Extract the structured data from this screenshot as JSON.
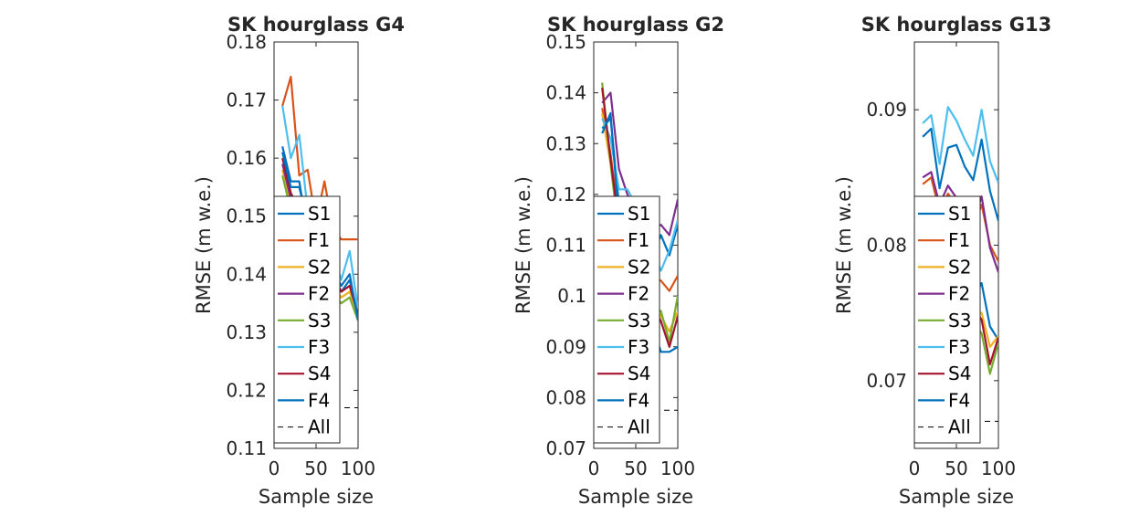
{
  "chart_data": [
    {
      "type": "line",
      "title": "SK hourglass G4",
      "xlabel": "Sample size",
      "ylabel": "RMSE (m w.e.)",
      "xlim": [
        0,
        100
      ],
      "ylim": [
        0.11,
        0.18
      ],
      "xticks": [
        0,
        50,
        100
      ],
      "xtick_labels": [
        "0",
        "50",
        "100"
      ],
      "yticks": [
        0.11,
        0.12,
        0.13,
        0.14,
        0.15,
        0.16,
        0.17,
        0.18
      ],
      "ytick_labels": [
        "0.11",
        "0.12",
        "0.13",
        "0.14",
        "0.15",
        "0.16",
        "0.17",
        "0.18"
      ],
      "legend_position": "bottom-left",
      "x": [
        10,
        20,
        30,
        40,
        50,
        60,
        70,
        80,
        90,
        100
      ],
      "series": [
        {
          "name": "S1",
          "color": "#0072bd",
          "values": [
            0.162,
            0.156,
            0.156,
            0.147,
            0.145,
            0.143,
            0.14,
            0.137,
            0.139,
            0.133
          ]
        },
        {
          "name": "F1",
          "color": "#d95319",
          "values": [
            0.169,
            0.174,
            0.157,
            0.158,
            0.149,
            0.156,
            0.148,
            0.146,
            0.146,
            0.146
          ]
        },
        {
          "name": "S2",
          "color": "#edb120",
          "values": [
            0.158,
            0.152,
            0.149,
            0.146,
            0.143,
            0.141,
            0.138,
            0.136,
            0.137,
            0.133
          ]
        },
        {
          "name": "F2",
          "color": "#7e2f8e",
          "values": [
            0.159,
            0.153,
            0.15,
            0.147,
            0.144,
            0.142,
            0.139,
            0.137,
            0.138,
            0.133
          ]
        },
        {
          "name": "S3",
          "color": "#77ac30",
          "values": [
            0.157,
            0.151,
            0.148,
            0.145,
            0.142,
            0.14,
            0.137,
            0.135,
            0.136,
            0.132
          ]
        },
        {
          "name": "F3",
          "color": "#4dbeee",
          "values": [
            0.169,
            0.16,
            0.164,
            0.151,
            0.149,
            0.147,
            0.144,
            0.139,
            0.144,
            0.134
          ]
        },
        {
          "name": "S4",
          "color": "#a2142f",
          "values": [
            0.16,
            0.154,
            0.151,
            0.148,
            0.145,
            0.143,
            0.14,
            0.137,
            0.138,
            0.133
          ]
        },
        {
          "name": "F4",
          "color": "#0072bd",
          "values": [
            0.161,
            0.155,
            0.155,
            0.149,
            0.146,
            0.144,
            0.141,
            0.138,
            0.14,
            0.132
          ]
        }
      ],
      "reference": {
        "name": "All",
        "color": "#000000",
        "style": "dashed",
        "value": 0.117
      }
    },
    {
      "type": "line",
      "title": "SK hourglass G2",
      "xlabel": "Sample size",
      "ylabel": "RMSE (m w.e.)",
      "xlim": [
        0,
        100
      ],
      "ylim": [
        0.07,
        0.15
      ],
      "xticks": [
        0,
        50,
        100
      ],
      "xtick_labels": [
        "0",
        "50",
        "100"
      ],
      "yticks": [
        0.07,
        0.08,
        0.09,
        0.1,
        0.11,
        0.12,
        0.13,
        0.14,
        0.15
      ],
      "ytick_labels": [
        "0.07",
        "0.08",
        "0.09",
        "0.1",
        "0.11",
        "0.12",
        "0.13",
        "0.14",
        "0.15"
      ],
      "legend_position": "bottom-left",
      "x": [
        10,
        20,
        30,
        40,
        50,
        60,
        70,
        80,
        90,
        100
      ],
      "series": [
        {
          "name": "S1",
          "color": "#0072bd",
          "values": [
            0.133,
            0.135,
            0.118,
            0.116,
            0.112,
            0.11,
            0.108,
            0.112,
            0.108,
            0.114
          ]
        },
        {
          "name": "F1",
          "color": "#d95319",
          "values": [
            0.137,
            0.128,
            0.115,
            0.111,
            0.108,
            0.106,
            0.104,
            0.103,
            0.101,
            0.104
          ]
        },
        {
          "name": "S2",
          "color": "#edb120",
          "values": [
            0.136,
            0.126,
            0.113,
            0.108,
            0.104,
            0.101,
            0.099,
            0.096,
            0.093,
            0.097
          ]
        },
        {
          "name": "F2",
          "color": "#7e2f8e",
          "values": [
            0.138,
            0.14,
            0.125,
            0.12,
            0.117,
            0.115,
            0.113,
            0.114,
            0.112,
            0.119
          ]
        },
        {
          "name": "S3",
          "color": "#77ac30",
          "values": [
            0.142,
            0.126,
            0.112,
            0.107,
            0.103,
            0.1,
            0.098,
            0.097,
            0.091,
            0.1
          ]
        },
        {
          "name": "F3",
          "color": "#4dbeee",
          "values": [
            0.135,
            0.131,
            0.121,
            0.121,
            0.118,
            0.114,
            0.109,
            0.105,
            0.109,
            0.115
          ]
        },
        {
          "name": "S4",
          "color": "#a2142f",
          "values": [
            0.141,
            0.127,
            0.114,
            0.108,
            0.104,
            0.101,
            0.098,
            0.095,
            0.09,
            0.096
          ]
        },
        {
          "name": "F4",
          "color": "#0072bd",
          "values": [
            0.132,
            0.136,
            0.115,
            0.109,
            0.104,
            0.099,
            0.094,
            0.089,
            0.089,
            0.09
          ]
        }
      ],
      "reference": {
        "name": "All",
        "color": "#000000",
        "style": "dashed",
        "value": 0.0775
      }
    },
    {
      "type": "line",
      "title": "SK hourglass G13",
      "xlabel": "Sample size",
      "ylabel": "RMSE (m w.e.)",
      "xlim": [
        0,
        100
      ],
      "ylim": [
        0.065,
        0.095
      ],
      "xticks": [
        0,
        50,
        100
      ],
      "xtick_labels": [
        "0",
        "50",
        "100"
      ],
      "yticks": [
        0.07,
        0.08,
        0.09
      ],
      "ytick_labels": [
        "0.07",
        "0.08",
        "0.09"
      ],
      "legend_position": "bottom-left",
      "x": [
        10,
        20,
        30,
        40,
        50,
        60,
        70,
        80,
        90,
        100
      ],
      "series": [
        {
          "name": "S1",
          "color": "#0072bd",
          "values": [
            0.08,
            0.079,
            0.0782,
            0.0776,
            0.077,
            0.0765,
            0.076,
            0.0772,
            0.074,
            0.073
          ]
        },
        {
          "name": "F1",
          "color": "#d95319",
          "values": [
            0.0845,
            0.085,
            0.0825,
            0.0838,
            0.083,
            0.0818,
            0.0812,
            0.083,
            0.08,
            0.0788
          ]
        },
        {
          "name": "S2",
          "color": "#edb120",
          "values": [
            0.0795,
            0.0788,
            0.078,
            0.0772,
            0.0765,
            0.0758,
            0.0752,
            0.075,
            0.0725,
            0.0733
          ]
        },
        {
          "name": "F2",
          "color": "#7e2f8e",
          "values": [
            0.085,
            0.0854,
            0.083,
            0.0844,
            0.0835,
            0.0822,
            0.0815,
            0.0836,
            0.0798,
            0.078
          ]
        },
        {
          "name": "S3",
          "color": "#77ac30",
          "values": [
            0.079,
            0.0782,
            0.0774,
            0.0766,
            0.0758,
            0.075,
            0.0744,
            0.0735,
            0.0705,
            0.0728
          ]
        },
        {
          "name": "F3",
          "color": "#4dbeee",
          "values": [
            0.089,
            0.0896,
            0.086,
            0.0902,
            0.0892,
            0.0878,
            0.0866,
            0.09,
            0.0862,
            0.0846
          ]
        },
        {
          "name": "S4",
          "color": "#a2142f",
          "values": [
            0.0798,
            0.079,
            0.0782,
            0.0775,
            0.0768,
            0.076,
            0.0754,
            0.0745,
            0.0712,
            0.0732
          ]
        },
        {
          "name": "F4",
          "color": "#0072bd",
          "values": [
            0.088,
            0.0886,
            0.0842,
            0.0872,
            0.0874,
            0.0858,
            0.0848,
            0.0878,
            0.084,
            0.0818
          ]
        }
      ],
      "reference": {
        "name": "All",
        "color": "#000000",
        "style": "dashed",
        "value": 0.067
      }
    }
  ]
}
